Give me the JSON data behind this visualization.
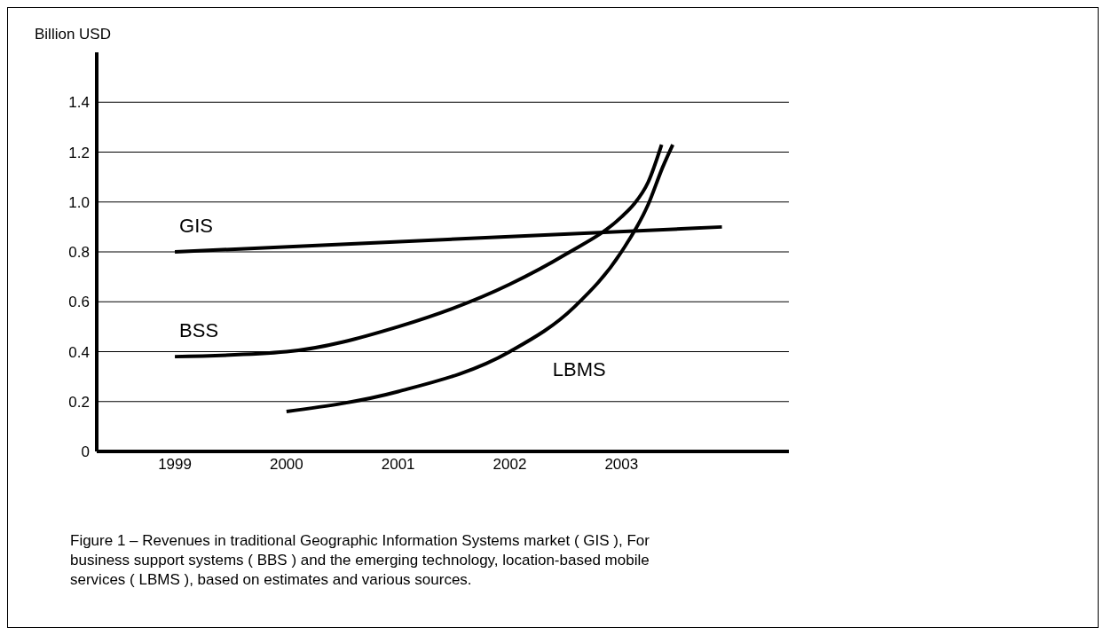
{
  "chart_data": {
    "type": "line",
    "ylabel": "Billion USD",
    "xlim": [
      1998.3,
      2004.5
    ],
    "xticks": [
      1999,
      2000,
      2001,
      2002,
      2003
    ],
    "ylim": [
      0,
      1.6
    ],
    "yticks": [
      0,
      0.2,
      0.4,
      0.6,
      0.8,
      {
        "value": 1,
        "label": "1.0"
      },
      1.2,
      1.4
    ],
    "grid": "y",
    "marker": "none",
    "line_style": "solid",
    "series": [
      {
        "name": "GIS",
        "color": "#000000",
        "x": [
          1999,
          2003.9
        ],
        "values": [
          0.8,
          0.9
        ]
      },
      {
        "name": "BSS",
        "color": "#000000",
        "x": [
          1999,
          2000,
          2001,
          2002,
          2002.5,
          2003,
          2003.11,
          2003.24,
          2003.36
        ],
        "values": [
          0.38,
          0.4,
          0.5,
          0.67,
          0.79,
          0.94,
          0.99,
          1.08,
          1.23
        ]
      },
      {
        "name": "LBMS",
        "color": "#000000",
        "x": [
          2000,
          2001,
          2002,
          2002.58,
          2003,
          2003.24,
          2003.37,
          2003.46
        ],
        "values": [
          0.16,
          0.24,
          0.4,
          0.58,
          0.8,
          0.99,
          1.14,
          1.23
        ]
      }
    ],
    "annotations": [
      "Figure 1 – Revenues in traditional Geographic Information Systems market ( GIS ), For business support systems ( BBS ) and the emerging technology, location-based mobile services ( LBMS ), based on estimates and various sources."
    ]
  }
}
